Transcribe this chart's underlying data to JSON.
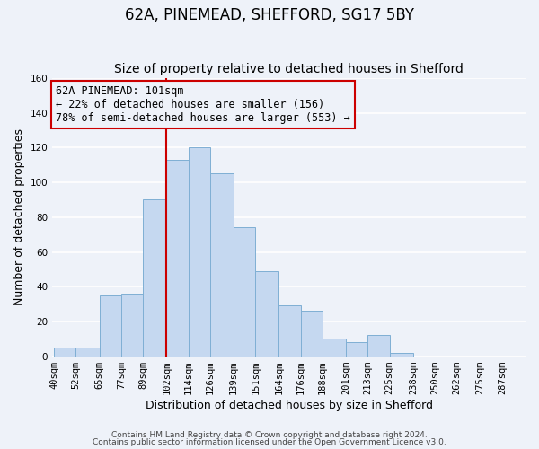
{
  "title": "62A, PINEMEAD, SHEFFORD, SG17 5BY",
  "subtitle": "Size of property relative to detached houses in Shefford",
  "xlabel": "Distribution of detached houses by size in Shefford",
  "ylabel": "Number of detached properties",
  "bin_edges": [
    40,
    52,
    65,
    77,
    89,
    102,
    114,
    126,
    139,
    151,
    164,
    176,
    188,
    201,
    213,
    225,
    238,
    250,
    262,
    275,
    287
  ],
  "bar_heights": [
    5,
    5,
    35,
    36,
    90,
    113,
    120,
    105,
    74,
    49,
    29,
    26,
    10,
    8,
    12,
    2,
    0,
    0,
    0,
    0
  ],
  "bar_color": "#c5d8f0",
  "bar_edge_color": "#7fafd4",
  "vline_x": 102,
  "vline_color": "#cc0000",
  "annotation_title": "62A PINEMEAD: 101sqm",
  "annotation_line1": "← 22% of detached houses are smaller (156)",
  "annotation_line2": "78% of semi-detached houses are larger (553) →",
  "annotation_box_edge": "#cc0000",
  "ylim": [
    0,
    160
  ],
  "yticks": [
    0,
    20,
    40,
    60,
    80,
    100,
    120,
    140,
    160
  ],
  "footer1": "Contains HM Land Registry data © Crown copyright and database right 2024.",
  "footer2": "Contains public sector information licensed under the Open Government Licence v3.0.",
  "background_color": "#eef2f9",
  "grid_color": "#ffffff",
  "title_fontsize": 12,
  "subtitle_fontsize": 10,
  "axis_label_fontsize": 9,
  "tick_fontsize": 7.5,
  "annotation_fontsize": 8.5,
  "footer_fontsize": 6.5
}
